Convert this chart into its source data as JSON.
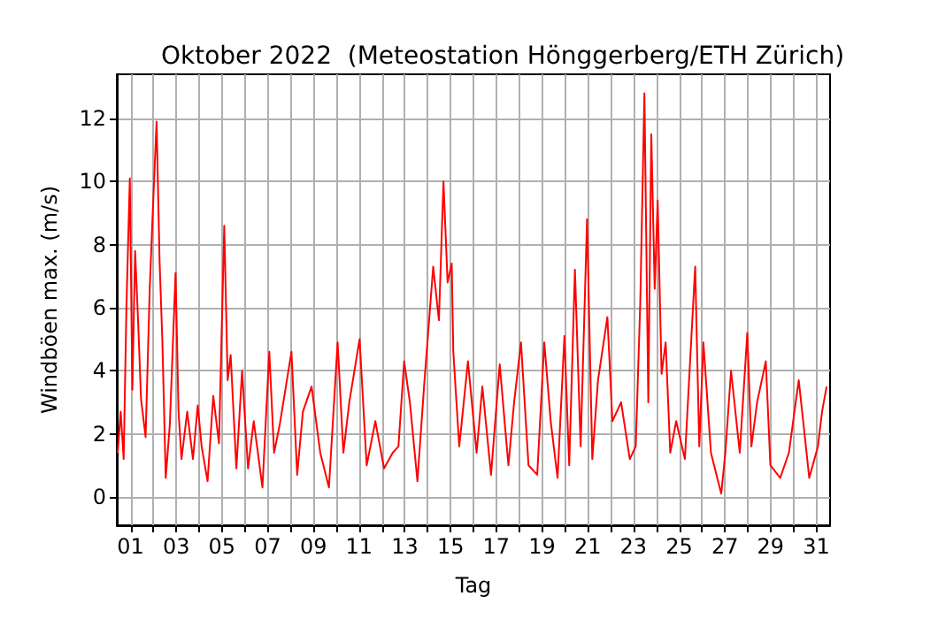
{
  "chart_data": {
    "type": "line",
    "title": "Oktober 2022  (Meteostation Hönggerberg/ETH Zürich)",
    "xlabel": "Tag",
    "ylabel": "Windböen max. (m/s)",
    "x": [
      0.44,
      0.57,
      0.7,
      0.82,
      0.97,
      1.08,
      1.2,
      1.33,
      1.46,
      1.66,
      1.84,
      1.96,
      2.14,
      2.27,
      2.39,
      2.47,
      2.54,
      2.72,
      2.97,
      3.1,
      3.23,
      3.48,
      3.73,
      3.94,
      4.11,
      4.37,
      4.62,
      4.87,
      5.1,
      5.25,
      5.38,
      5.63,
      5.88,
      6.14,
      6.39,
      6.77,
      7.07,
      7.28,
      7.53,
      8.04,
      8.29,
      8.54,
      8.92,
      9.3,
      9.68,
      10.06,
      10.31,
      10.57,
      11.02,
      11.33,
      11.71,
      12.09,
      12.47,
      12.72,
      12.97,
      13.22,
      13.55,
      13.86,
      14.03,
      14.24,
      14.49,
      14.69,
      14.87,
      15.05,
      15.12,
      15.38,
      15.76,
      16.14,
      16.39,
      16.77,
      17.15,
      17.53,
      17.78,
      18.08,
      18.41,
      18.79,
      19.1,
      19.38,
      19.68,
      19.98,
      20.19,
      20.44,
      20.69,
      20.97,
      21.2,
      21.45,
      21.86,
      22.08,
      22.46,
      22.84,
      23.1,
      23.3,
      23.48,
      23.65,
      23.78,
      23.93,
      24.06,
      24.23,
      24.41,
      24.61,
      24.87,
      25.25,
      25.7,
      25.88,
      26.06,
      26.39,
      26.84,
      27.02,
      27.27,
      27.65,
      27.98,
      28.16,
      28.41,
      28.79,
      28.99,
      29.42,
      29.8,
      30.23,
      30.44,
      30.69,
      31.07,
      31.25,
      31.45
    ],
    "series": [
      {
        "color": "#ff0000",
        "values": [
          1.4,
          2.7,
          1.2,
          6.0,
          10.1,
          3.4,
          7.8,
          5.6,
          3.1,
          1.9,
          6.6,
          8.8,
          11.9,
          7.5,
          5.0,
          2.7,
          0.6,
          2.3,
          7.1,
          2.7,
          1.2,
          2.7,
          1.2,
          2.9,
          1.6,
          0.5,
          3.2,
          1.7,
          8.6,
          3.7,
          4.5,
          0.9,
          4.0,
          0.9,
          2.4,
          0.3,
          4.6,
          1.4,
          2.3,
          4.6,
          0.7,
          2.7,
          3.5,
          1.4,
          0.3,
          4.9,
          1.4,
          3.0,
          5.0,
          1.0,
          2.4,
          0.9,
          1.4,
          1.6,
          4.3,
          3.0,
          0.5,
          3.7,
          5.3,
          7.3,
          5.6,
          10.0,
          6.8,
          7.4,
          4.6,
          1.6,
          4.3,
          1.4,
          3.5,
          0.7,
          4.2,
          1.0,
          3.0,
          4.9,
          1.0,
          0.7,
          4.9,
          2.4,
          0.6,
          5.1,
          1.0,
          7.2,
          1.6,
          8.8,
          1.2,
          3.7,
          5.7,
          2.4,
          3.0,
          1.2,
          1.6,
          6.2,
          12.8,
          3.0,
          11.5,
          6.6,
          9.4,
          3.9,
          4.9,
          1.4,
          2.4,
          1.2,
          7.3,
          1.6,
          4.9,
          1.4,
          0.1,
          1.4,
          4.0,
          1.4,
          5.2,
          1.6,
          3.0,
          4.3,
          1.0,
          0.6,
          1.4,
          3.7,
          2.3,
          0.6,
          1.6,
          2.7,
          3.5
        ]
      }
    ],
    "xlim": [
      0.4,
      31.6
    ],
    "xticks": [
      {
        "value": 1,
        "label": "01"
      },
      {
        "value": 2,
        "label": null
      },
      {
        "value": 3,
        "label": "03"
      },
      {
        "value": 4,
        "label": null
      },
      {
        "value": 5,
        "label": "05"
      },
      {
        "value": 6,
        "label": null
      },
      {
        "value": 7,
        "label": "07"
      },
      {
        "value": 8,
        "label": null
      },
      {
        "value": 9,
        "label": "09"
      },
      {
        "value": 10,
        "label": null
      },
      {
        "value": 11,
        "label": "11"
      },
      {
        "value": 12,
        "label": null
      },
      {
        "value": 13,
        "label": "13"
      },
      {
        "value": 14,
        "label": null
      },
      {
        "value": 15,
        "label": "15"
      },
      {
        "value": 16,
        "label": null
      },
      {
        "value": 17,
        "label": "17"
      },
      {
        "value": 18,
        "label": null
      },
      {
        "value": 19,
        "label": "19"
      },
      {
        "value": 20,
        "label": null
      },
      {
        "value": 21,
        "label": "21"
      },
      {
        "value": 22,
        "label": null
      },
      {
        "value": 23,
        "label": "23"
      },
      {
        "value": 24,
        "label": null
      },
      {
        "value": 25,
        "label": "25"
      },
      {
        "value": 26,
        "label": null
      },
      {
        "value": 27,
        "label": "27"
      },
      {
        "value": 28,
        "label": null
      },
      {
        "value": 29,
        "label": "29"
      },
      {
        "value": 30,
        "label": null
      },
      {
        "value": 31,
        "label": "31"
      }
    ],
    "ylim": [
      -0.9,
      13.4
    ],
    "yticks": [
      0,
      2,
      4,
      6,
      8,
      10,
      12
    ],
    "grid": true,
    "marker": "none",
    "line_style": "solid"
  }
}
